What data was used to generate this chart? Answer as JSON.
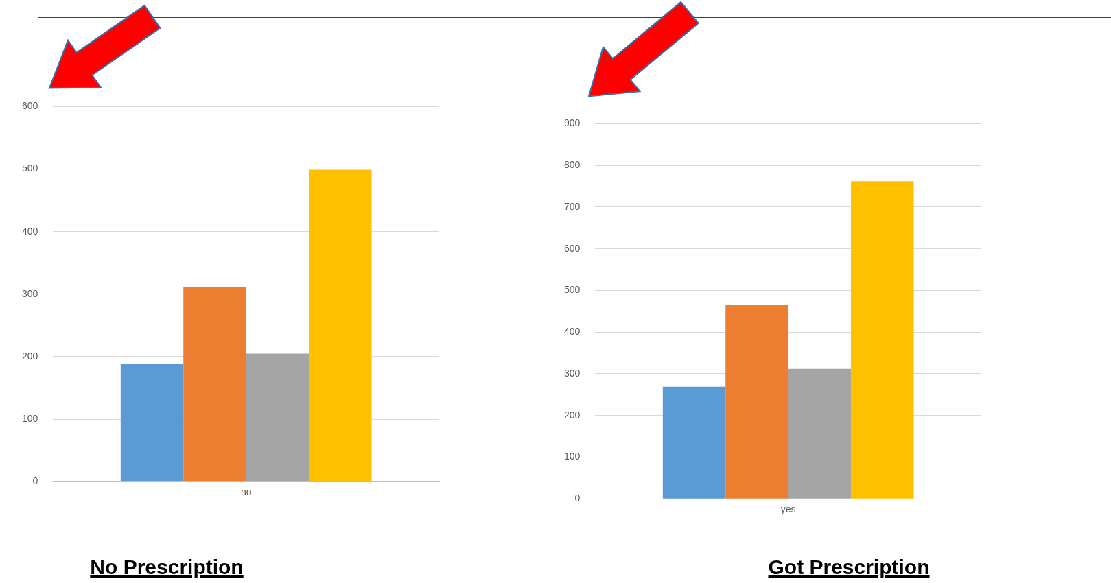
{
  "chart_data": [
    {
      "type": "bar",
      "title": "No Prescription",
      "categories": [
        "no"
      ],
      "series": [
        {
          "color": "#5b9bd5",
          "values": [
            188
          ]
        },
        {
          "color": "#ed7d31",
          "values": [
            311
          ]
        },
        {
          "color": "#a5a5a5",
          "values": [
            205
          ]
        },
        {
          "color": "#ffc000",
          "values": [
            499
          ]
        }
      ],
      "ylim": [
        0,
        600
      ],
      "yticks": [
        0,
        100,
        200,
        300,
        400,
        500,
        600
      ],
      "grid": "y"
    },
    {
      "type": "bar",
      "title": "Got Prescription",
      "categories": [
        "yes"
      ],
      "series": [
        {
          "color": "#5b9bd5",
          "values": [
            269
          ]
        },
        {
          "color": "#ed7d31",
          "values": [
            465
          ]
        },
        {
          "color": "#a5a5a5",
          "values": [
            312
          ]
        },
        {
          "color": "#ffc000",
          "values": [
            762
          ]
        }
      ],
      "ylim": [
        0,
        900
      ],
      "yticks": [
        0,
        100,
        200,
        300,
        400,
        500,
        600,
        700,
        800,
        900
      ],
      "grid": "y"
    }
  ]
}
